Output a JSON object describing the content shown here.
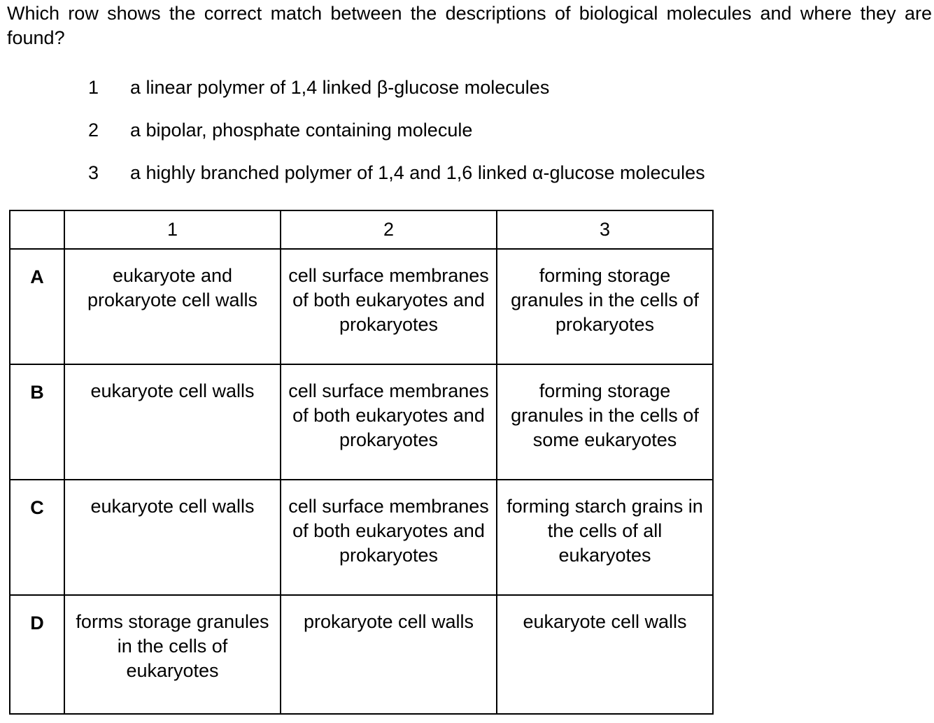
{
  "question": "Which row shows the correct match between the descriptions of biological molecules and where they are found?",
  "statements": [
    {
      "number": "1",
      "text": "a linear polymer of 1,4 linked β-glucose molecules"
    },
    {
      "number": "2",
      "text": "a bipolar, phosphate containing molecule"
    },
    {
      "number": "3",
      "text": "a highly branched polymer of 1,4 and 1,6 linked α-glucose molecules"
    }
  ],
  "table": {
    "headers": [
      "",
      "1",
      "2",
      "3"
    ],
    "rows": [
      {
        "letter": "A",
        "cells": [
          "eukaryote and prokaryote cell walls",
          "cell surface membranes of both eukaryotes and prokaryotes",
          "forming storage granules in the cells of prokaryotes"
        ]
      },
      {
        "letter": "B",
        "cells": [
          "eukaryote cell walls",
          "cell surface membranes of both eukaryotes and prokaryotes",
          "forming storage granules in the cells of some eukaryotes"
        ]
      },
      {
        "letter": "C",
        "cells": [
          "eukaryote cell walls",
          "cell surface membranes of both eukaryotes and prokaryotes",
          "forming starch grains in the cells of all eukaryotes"
        ]
      },
      {
        "letter": "D",
        "cells": [
          "forms storage granules in the cells of eukaryotes",
          "prokaryote cell walls",
          "eukaryote cell walls"
        ]
      }
    ]
  }
}
